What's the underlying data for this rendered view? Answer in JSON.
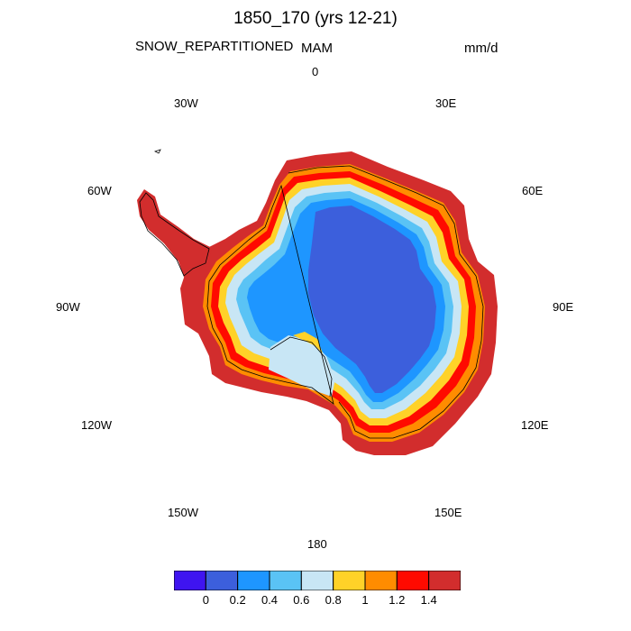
{
  "title": "1850_170 (yrs 12-21)",
  "variable": "SNOW_REPARTITIONED",
  "season": "MAM",
  "units": "mm/d",
  "longitude_labels": {
    "lon_0": "0",
    "lon_30E": "30E",
    "lon_60E": "60E",
    "lon_90E": "90E",
    "lon_120E": "120E",
    "lon_150E": "150E",
    "lon_180": "180",
    "lon_150W": "150W",
    "lon_120W": "120W",
    "lon_90W": "90W",
    "lon_60W": "60W",
    "lon_30W": "30W"
  },
  "colorbar": {
    "colors": [
      "#3f14f0",
      "#3c5fdc",
      "#1e96ff",
      "#5ac3f5",
      "#c8e6f5",
      "#ffd228",
      "#ff8c00",
      "#ff0a00",
      "#d22d2d"
    ],
    "tick_labels": [
      "0",
      "0.2",
      "0.4",
      "0.6",
      "0.8",
      "1",
      "1.2",
      "1.4"
    ]
  },
  "colors": {
    "interior": "#3c5fdc",
    "coast_line": "#000000"
  }
}
